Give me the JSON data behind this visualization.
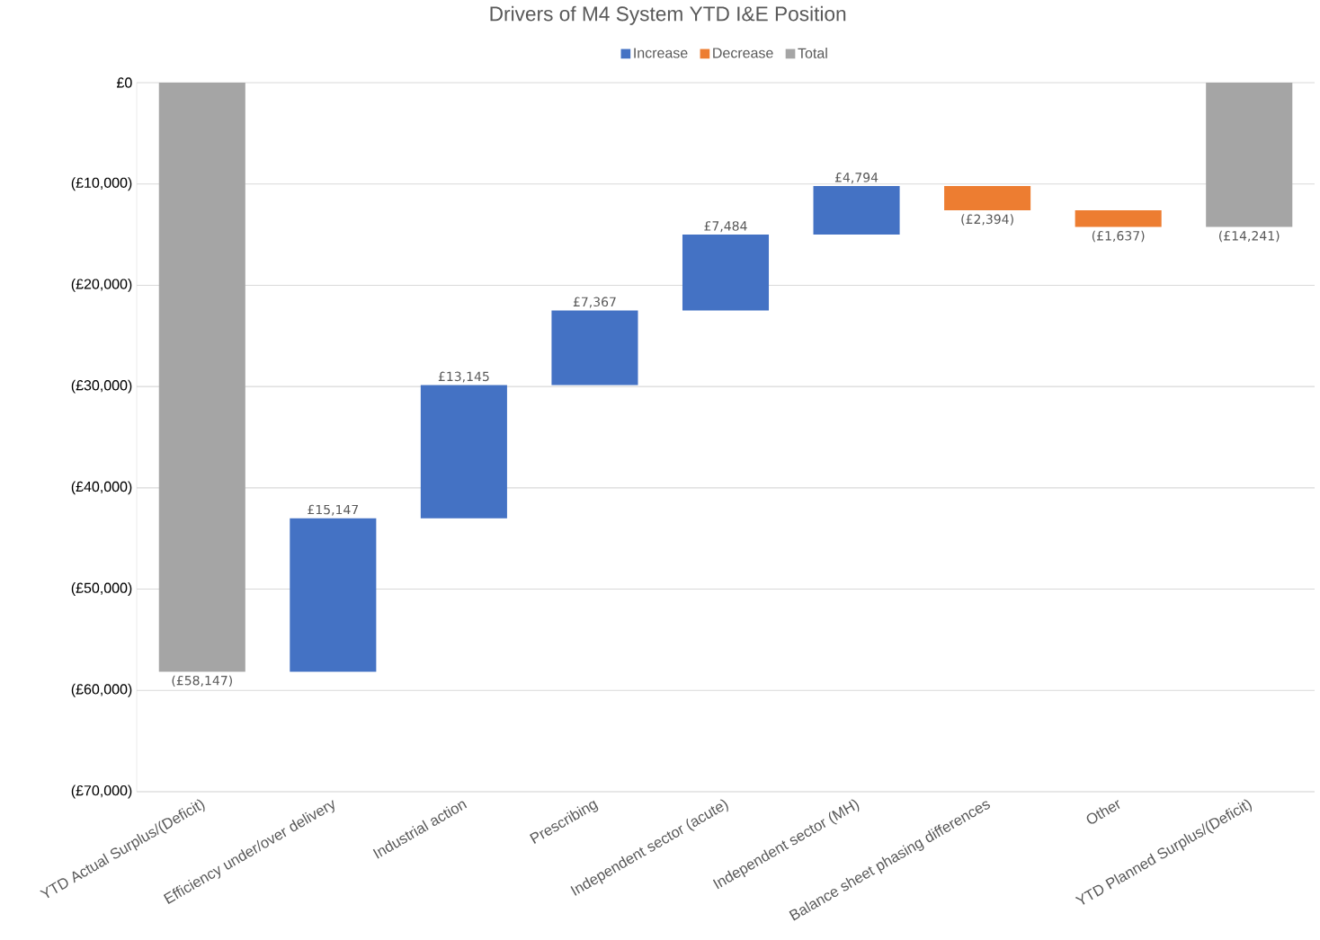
{
  "chart_data": {
    "type": "bar",
    "title": "Drivers of M4 System YTD I&E Position",
    "categories": [
      "YTD Actual Surplus/(Deficit)",
      "Efficiency under/over delivery",
      "Industrial action",
      "Prescribing",
      "Independent sector (acute)",
      "Independent sector (MH)",
      "Balance sheet phasing differences",
      "Other",
      "YTD Planned Surplus/(Deficit)"
    ],
    "series": [
      {
        "name": "Increase",
        "color": "#4472c4",
        "base": [
          null,
          -58147,
          -43000,
          -29855,
          -22488,
          -15004,
          null,
          null,
          null
        ],
        "values": [
          null,
          15147,
          13145,
          7367,
          7484,
          4794,
          null,
          null,
          null
        ],
        "value_labels": [
          null,
          "£15,147",
          "£13,145",
          "£7,367",
          "£7,484",
          "£4,794",
          null,
          null,
          null
        ]
      },
      {
        "name": "Decrease",
        "color": "#ed7d31",
        "base": [
          null,
          null,
          null,
          null,
          null,
          null,
          -10210,
          -12604,
          null
        ],
        "values": [
          null,
          null,
          null,
          null,
          null,
          null,
          -2394,
          -1637,
          null
        ],
        "value_labels": [
          null,
          null,
          null,
          null,
          null,
          null,
          "(£2,394)",
          "(£1,637)",
          null
        ]
      },
      {
        "name": "Total",
        "color": "#a5a5a5",
        "base": [
          0,
          null,
          null,
          null,
          null,
          null,
          null,
          null,
          0
        ],
        "values": [
          -58147,
          null,
          null,
          null,
          null,
          null,
          null,
          null,
          -14241
        ],
        "value_labels": [
          "(£58,147)",
          null,
          null,
          null,
          null,
          null,
          null,
          null,
          "(£14,241)"
        ]
      }
    ],
    "ylim": [
      -70000,
      0
    ],
    "yticks": [
      {
        "value": -70000,
        "label": "(£70,000)"
      },
      {
        "value": -60000,
        "label": "(£60,000)"
      },
      {
        "value": -50000,
        "label": "(£50,000)"
      },
      {
        "value": -40000,
        "label": "(£40,000)"
      },
      {
        "value": -30000,
        "label": "(£30,000)"
      },
      {
        "value": -20000,
        "label": "(£20,000)"
      },
      {
        "value": -10000,
        "label": "(£10,000)"
      },
      {
        "value": 0,
        "label": "£0"
      }
    ],
    "grid": "y",
    "legend": "top"
  }
}
